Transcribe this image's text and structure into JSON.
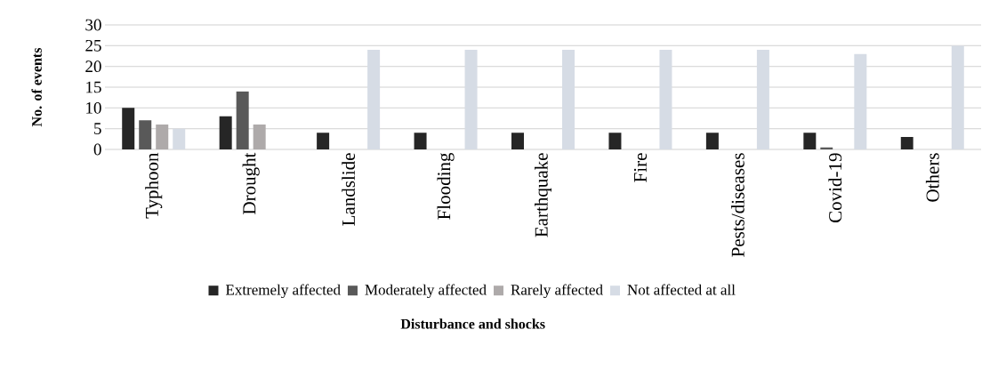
{
  "chart_data": {
    "type": "bar",
    "xlabel": "Disturbance and shocks",
    "ylabel": "No. of events",
    "categories": [
      "Typhoon",
      "Drought",
      "Landslide",
      "Flooding",
      "Earthquake",
      "Fire",
      "Pests/diseases",
      "Covid-19",
      "Others"
    ],
    "series": [
      {
        "name": "Extremely affected",
        "color": "#262626",
        "values": [
          10,
          8,
          4,
          4,
          4,
          4,
          4,
          4,
          3
        ]
      },
      {
        "name": "Moderately affected",
        "color": "#595959",
        "values": [
          7,
          14,
          null,
          null,
          null,
          null,
          null,
          0.5,
          null
        ]
      },
      {
        "name": "Rarely affected",
        "color": "#aeaaaa",
        "values": [
          6,
          6,
          null,
          null,
          null,
          null,
          null,
          null,
          null
        ]
      },
      {
        "name": "Not affected at all",
        "color": "#d6dce5",
        "values": [
          5,
          null,
          24,
          24,
          24,
          24,
          24,
          23,
          25
        ]
      }
    ],
    "ylim": [
      0,
      30
    ],
    "yticks": [
      0,
      5,
      10,
      15,
      20,
      25,
      30
    ],
    "grid": "y",
    "legend": "bottom"
  }
}
